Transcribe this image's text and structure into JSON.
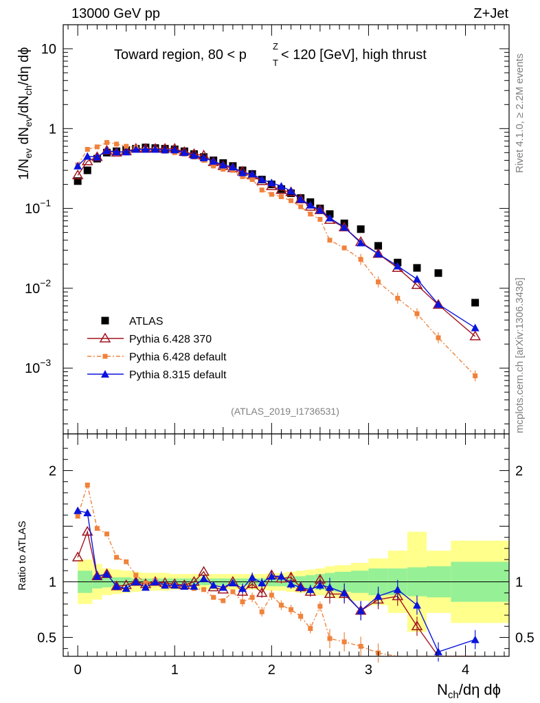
{
  "header": {
    "energy_label": "13000 GeV pp",
    "process_label": "Z+Jet",
    "plot_title_pre": "Toward region, 80 < p",
    "plot_title_sup": "Z",
    "plot_title_sub": "T",
    "plot_title_post": " < 120 [GeV], high thrust"
  },
  "side_text": {
    "rivet": "Rivet 4.1.0, ≥ 2.2M events",
    "source": "mcplots.cern.ch [arXiv:1306.3436]"
  },
  "analysis_tag": "(ATLAS_2019_I1736531)",
  "axes": {
    "y_main": {
      "p1": "1/N",
      "s1": "ev",
      "p2": " dN",
      "s2": "ev",
      "p3": "/dN",
      "s3": "ch",
      "p4": "/dη dϕ"
    },
    "y_main_ticks": [
      {
        "value": 10,
        "label": "10"
      },
      {
        "value": 1,
        "label": "1"
      },
      {
        "value": 0.1,
        "label": "10",
        "exp": "−1"
      },
      {
        "value": 0.01,
        "label": "10",
        "exp": "−2"
      },
      {
        "value": 0.001,
        "label": "10",
        "exp": "−3"
      }
    ],
    "y_ratio": "Ratio to ATLAS",
    "y_ratio_ticks": [
      {
        "value": 0.5,
        "label": "0.5"
      },
      {
        "value": 1,
        "label": "1"
      },
      {
        "value": 2,
        "label": "2"
      }
    ],
    "x_label_main": "N",
    "x_label_sub": "ch",
    "x_label_post": "/dη dϕ",
    "x_ticks": [
      {
        "value": 0,
        "label": "0"
      },
      {
        "value": 1,
        "label": "1"
      },
      {
        "value": 2,
        "label": "2"
      },
      {
        "value": 3,
        "label": "3"
      },
      {
        "value": 4,
        "label": "4"
      }
    ]
  },
  "legend": [
    {
      "label": "ATLAS",
      "series": "atlas"
    },
    {
      "label": "Pythia 6.428 370",
      "series": "p370"
    },
    {
      "label": "Pythia 6.428 default",
      "series": "p6def"
    },
    {
      "label": "Pythia 8.315 default",
      "series": "p8def"
    }
  ],
  "colors": {
    "atlas": "#000000",
    "p370": "#a0141e",
    "p6def": "#f0823c",
    "p8def": "#0a14dc",
    "band_outer": "#ffff8c",
    "band_inner": "#96f096"
  },
  "chart_data": {
    "type": "scatter",
    "title": "Toward region, 80 < pT(Z) < 120 [GeV], high thrust",
    "xlabel": "Nch/dη dϕ",
    "ylabel": "1/Nev dNev/dNch/dη dϕ",
    "xlim": [
      -0.15,
      4.45
    ],
    "ylim": [
      0.00015,
      20
    ],
    "ratio_ylim": [
      0.33,
      2.33
    ],
    "x": [
      0,
      0.1,
      0.2,
      0.3,
      0.4,
      0.5,
      0.6,
      0.7,
      0.8,
      0.9,
      1.0,
      1.1,
      1.2,
      1.3,
      1.4,
      1.5,
      1.6,
      1.7,
      1.8,
      1.9,
      2.0,
      2.1,
      2.2,
      2.3,
      2.4,
      2.5,
      2.6,
      2.75,
      2.92,
      3.1,
      3.3,
      3.5,
      3.72,
      4.1
    ],
    "series": [
      {
        "name": "ATLAS",
        "key": "atlas",
        "values": [
          0.22,
          0.3,
          0.42,
          0.5,
          0.52,
          0.54,
          0.56,
          0.58,
          0.57,
          0.56,
          0.55,
          0.52,
          0.48,
          0.44,
          0.4,
          0.37,
          0.34,
          0.3,
          0.27,
          0.23,
          0.2,
          0.175,
          0.155,
          0.135,
          0.12,
          0.1,
          0.085,
          0.065,
          0.055,
          0.034,
          0.021,
          0.018,
          0.0155,
          0.0066
        ]
      },
      {
        "name": "Pythia 6.428 370",
        "key": "p370",
        "values": [
          0.26,
          0.39,
          0.44,
          0.53,
          0.5,
          0.52,
          0.56,
          0.56,
          0.56,
          0.56,
          0.56,
          0.51,
          0.48,
          0.46,
          0.38,
          0.34,
          0.32,
          0.29,
          0.26,
          0.22,
          0.19,
          0.17,
          0.16,
          0.13,
          0.105,
          0.095,
          0.072,
          0.058,
          0.038,
          0.027,
          0.018,
          0.011,
          0.0062,
          0.0025
        ]
      },
      {
        "name": "Pythia 6.428 default",
        "key": "p6def",
        "values": [
          0.35,
          0.55,
          0.59,
          0.67,
          0.64,
          0.6,
          0.58,
          0.55,
          0.55,
          0.52,
          0.5,
          0.48,
          0.44,
          0.4,
          0.34,
          0.31,
          0.3,
          0.25,
          0.23,
          0.17,
          0.15,
          0.14,
          0.125,
          0.105,
          0.085,
          0.073,
          0.04,
          0.032,
          0.023,
          0.012,
          0.0075,
          0.0048,
          0.0024,
          0.0008
        ]
      },
      {
        "name": "Pythia 8.315 default",
        "key": "p8def",
        "values": [
          0.34,
          0.45,
          0.44,
          0.53,
          0.51,
          0.51,
          0.55,
          0.55,
          0.55,
          0.54,
          0.54,
          0.5,
          0.46,
          0.43,
          0.39,
          0.35,
          0.33,
          0.28,
          0.27,
          0.23,
          0.21,
          0.19,
          0.165,
          0.13,
          0.11,
          0.095,
          0.076,
          0.058,
          0.037,
          0.027,
          0.019,
          0.013,
          0.0063,
          0.0032
        ]
      }
    ],
    "ratios": {
      "p370": [
        1.22,
        1.45,
        1.05,
        1.07,
        0.96,
        0.97,
        1.0,
        0.98,
        1.0,
        0.99,
        0.98,
        0.97,
        1.0,
        1.09,
        0.95,
        0.93,
        1.0,
        0.91,
        0.98,
        0.9,
        1.06,
        1.03,
        1.04,
        0.95,
        0.91,
        1.02,
        0.89,
        0.89,
        0.74,
        0.84,
        0.87,
        0.6,
        0.33,
        0.33
      ],
      "p6def": [
        1.59,
        1.87,
        1.48,
        1.43,
        1.22,
        1.18,
        1.06,
        0.99,
        1.01,
        0.96,
        0.96,
        0.95,
        0.94,
        0.93,
        0.86,
        0.83,
        0.91,
        0.82,
        0.86,
        0.73,
        0.88,
        0.79,
        0.75,
        0.69,
        0.58,
        0.78,
        0.49,
        0.46,
        0.42,
        0.36,
        0.33,
        0.33,
        0.33,
        0.33
      ],
      "p8def": [
        1.64,
        1.62,
        1.05,
        1.07,
        0.96,
        0.94,
        1.0,
        0.95,
        1.0,
        0.97,
        0.97,
        0.96,
        0.96,
        1.03,
        0.97,
        0.95,
        0.99,
        0.94,
        1.04,
        0.99,
        1.05,
        1.05,
        0.98,
        0.95,
        0.93,
        0.97,
        0.95,
        0.9,
        0.74,
        0.87,
        0.93,
        0.79,
        0.37,
        0.48
      ]
    },
    "band": {
      "x_edges": [
        0,
        0.15,
        0.25,
        0.35,
        0.45,
        0.55,
        0.65,
        0.75,
        0.85,
        0.95,
        1.05,
        1.15,
        1.25,
        1.35,
        1.45,
        1.55,
        1.65,
        1.75,
        1.85,
        1.95,
        2.05,
        2.15,
        2.25,
        2.35,
        2.45,
        2.55,
        2.65,
        2.82,
        3.0,
        3.2,
        3.4,
        3.6,
        3.85,
        4.45
      ],
      "outer": [
        0.2,
        0.16,
        0.12,
        0.11,
        0.1,
        0.09,
        0.08,
        0.08,
        0.08,
        0.07,
        0.07,
        0.07,
        0.07,
        0.07,
        0.07,
        0.07,
        0.07,
        0.07,
        0.07,
        0.08,
        0.08,
        0.09,
        0.1,
        0.11,
        0.12,
        0.14,
        0.15,
        0.17,
        0.21,
        0.28,
        0.45,
        0.28,
        0.37,
        0.4
      ],
      "inner": [
        0.1,
        0.06,
        0.05,
        0.04,
        0.04,
        0.03,
        0.03,
        0.03,
        0.03,
        0.03,
        0.03,
        0.03,
        0.03,
        0.03,
        0.03,
        0.03,
        0.03,
        0.03,
        0.03,
        0.04,
        0.04,
        0.05,
        0.05,
        0.06,
        0.07,
        0.08,
        0.09,
        0.1,
        0.12,
        0.12,
        0.13,
        0.14,
        0.18,
        0.2
      ]
    }
  }
}
